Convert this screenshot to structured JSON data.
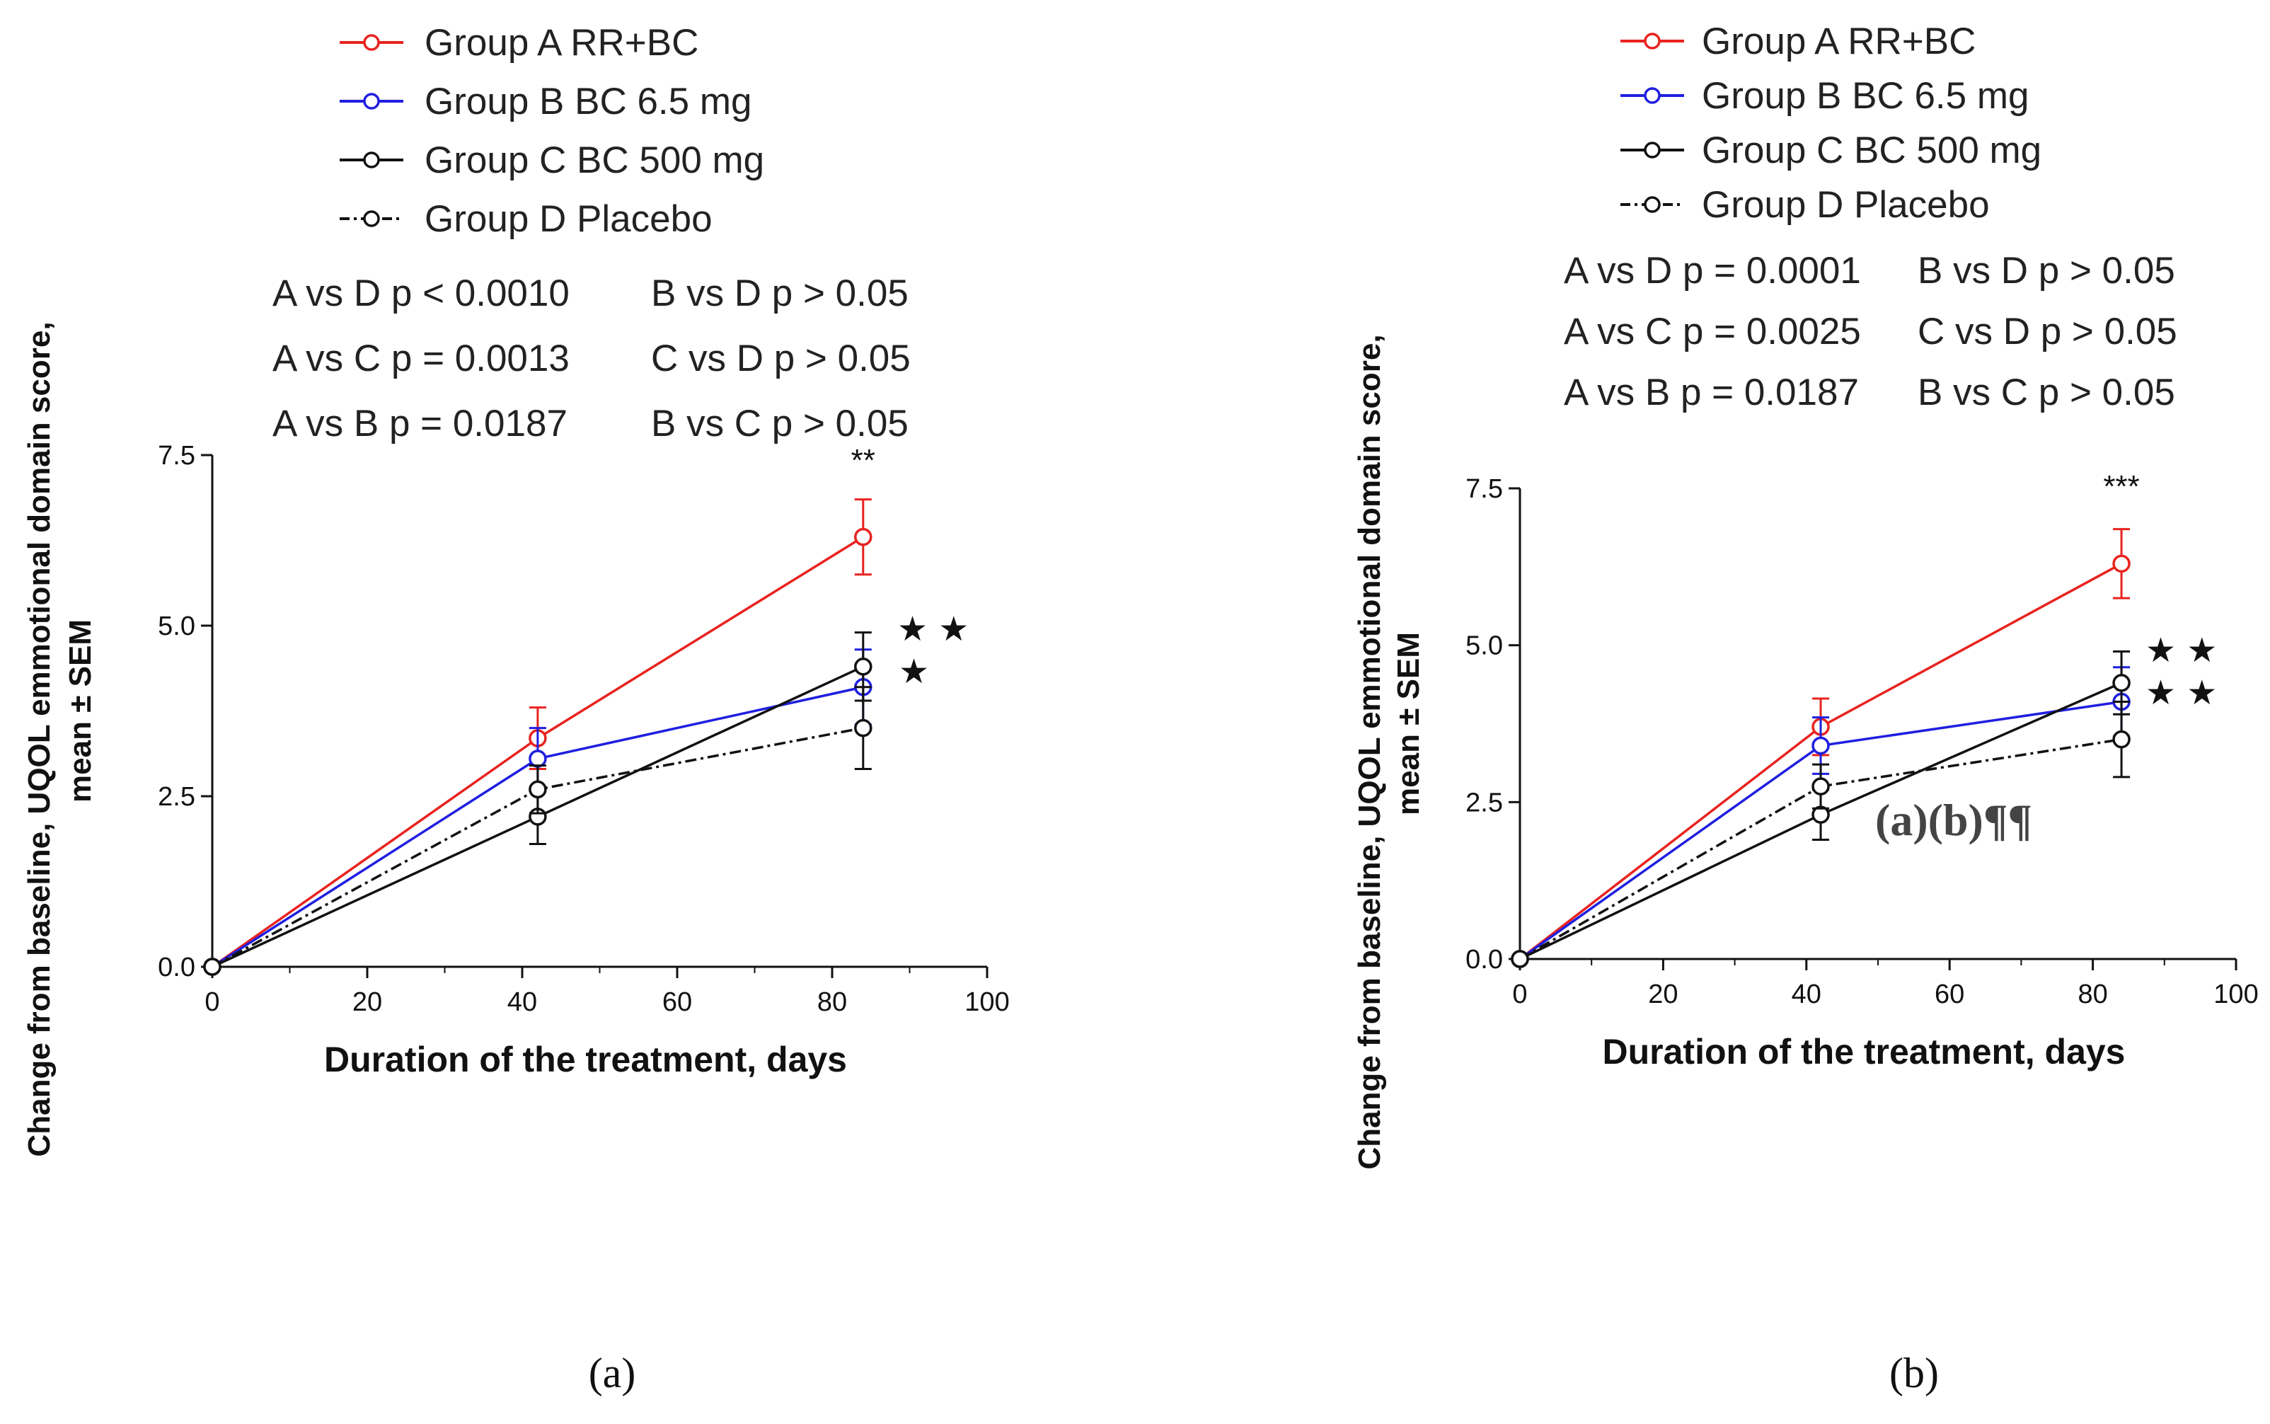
{
  "figure": {
    "panels": [
      {
        "id": "a",
        "caption": "(a)",
        "chart_data": {
          "type": "line",
          "title": "",
          "xlabel": "Duration of the treatment, days",
          "ylabel_lines": [
            "Change from baseline, UQOL emmotional domain score,",
            "mean ± SEM"
          ],
          "xlim": [
            0,
            100
          ],
          "ylim": [
            0,
            7.5
          ],
          "xticks": [
            "0",
            "20",
            "40",
            "60",
            "80",
            "100"
          ],
          "yticks": [
            "0.0",
            "2.5",
            "5.0",
            "7.5"
          ],
          "legend_position": "top",
          "x": [
            0,
            42,
            84
          ],
          "series": [
            {
              "name": "Group A RR+BC",
              "color": "#e8231f",
              "dash": "solid",
              "values": [
                0,
                3.35,
                6.3
              ],
              "sem": [
                0,
                0.45,
                0.55
              ]
            },
            {
              "name": "Group B BC 6.5 mg",
              "color": "#1f1fe0",
              "dash": "solid",
              "values": [
                0,
                3.05,
                4.1
              ],
              "sem": [
                0,
                0.45,
                0.55
              ]
            },
            {
              "name": "Group C BC 500 mg",
              "color": "#111111",
              "dash": "solid",
              "values": [
                0,
                2.2,
                4.4
              ],
              "sem": [
                0,
                0.4,
                0.5
              ]
            },
            {
              "name": "Group D Placebo",
              "color": "#111111",
              "dash": "dashdot",
              "values": [
                0,
                2.6,
                3.5
              ],
              "sem": [
                0,
                0.35,
                0.6
              ]
            }
          ],
          "stats": [
            [
              "A vs D p < 0.0010",
              "B vs D p > 0.05"
            ],
            [
              "A vs C p = 0.0013",
              "C vs D p > 0.05"
            ],
            [
              "A vs B p = 0.0187",
              "B vs C p > 0.05"
            ]
          ],
          "annotations": {
            "top_sig": "**",
            "star_line1": "★ ★",
            "star_line2": "★"
          }
        }
      },
      {
        "id": "b",
        "caption": "(b)",
        "chart_data": {
          "type": "line",
          "title": "",
          "xlabel": "Duration of the treatment, days",
          "ylabel_lines": [
            "Change from baseline, UQOL emmotional domain score,",
            "mean ± SEM"
          ],
          "xlim": [
            0,
            100
          ],
          "ylim": [
            0,
            7.5
          ],
          "xticks": [
            "0",
            "20",
            "40",
            "60",
            "80",
            "100"
          ],
          "yticks": [
            "0.0",
            "2.5",
            "5.0",
            "7.5"
          ],
          "legend_position": "top",
          "x": [
            0,
            42,
            84
          ],
          "series": [
            {
              "name": "Group A RR+BC",
              "color": "#e8231f",
              "dash": "solid",
              "values": [
                0,
                3.7,
                6.3
              ],
              "sem": [
                0,
                0.45,
                0.55
              ]
            },
            {
              "name": "Group B BC 6.5 mg",
              "color": "#1f1fe0",
              "dash": "solid",
              "values": [
                0,
                3.4,
                4.1
              ],
              "sem": [
                0,
                0.45,
                0.55
              ]
            },
            {
              "name": "Group C BC 500 mg",
              "color": "#111111",
              "dash": "solid",
              "values": [
                0,
                2.3,
                4.4
              ],
              "sem": [
                0,
                0.4,
                0.5
              ]
            },
            {
              "name": "Group D Placebo",
              "color": "#111111",
              "dash": "dashdot",
              "values": [
                0,
                2.75,
                3.5
              ],
              "sem": [
                0,
                0.35,
                0.6
              ]
            }
          ],
          "stats": [
            [
              "A vs D p = 0.0001",
              "B vs D p > 0.05"
            ],
            [
              "A vs C p = 0.0025",
              "C vs D p > 0.05"
            ],
            [
              "A vs B p = 0.0187",
              "B vs C p > 0.05"
            ]
          ],
          "annotations": {
            "top_sig": "***",
            "star_line1": "★ ★",
            "star_line2": "★ ★",
            "overlay_text": "(a)(b)¶¶"
          }
        }
      }
    ]
  }
}
